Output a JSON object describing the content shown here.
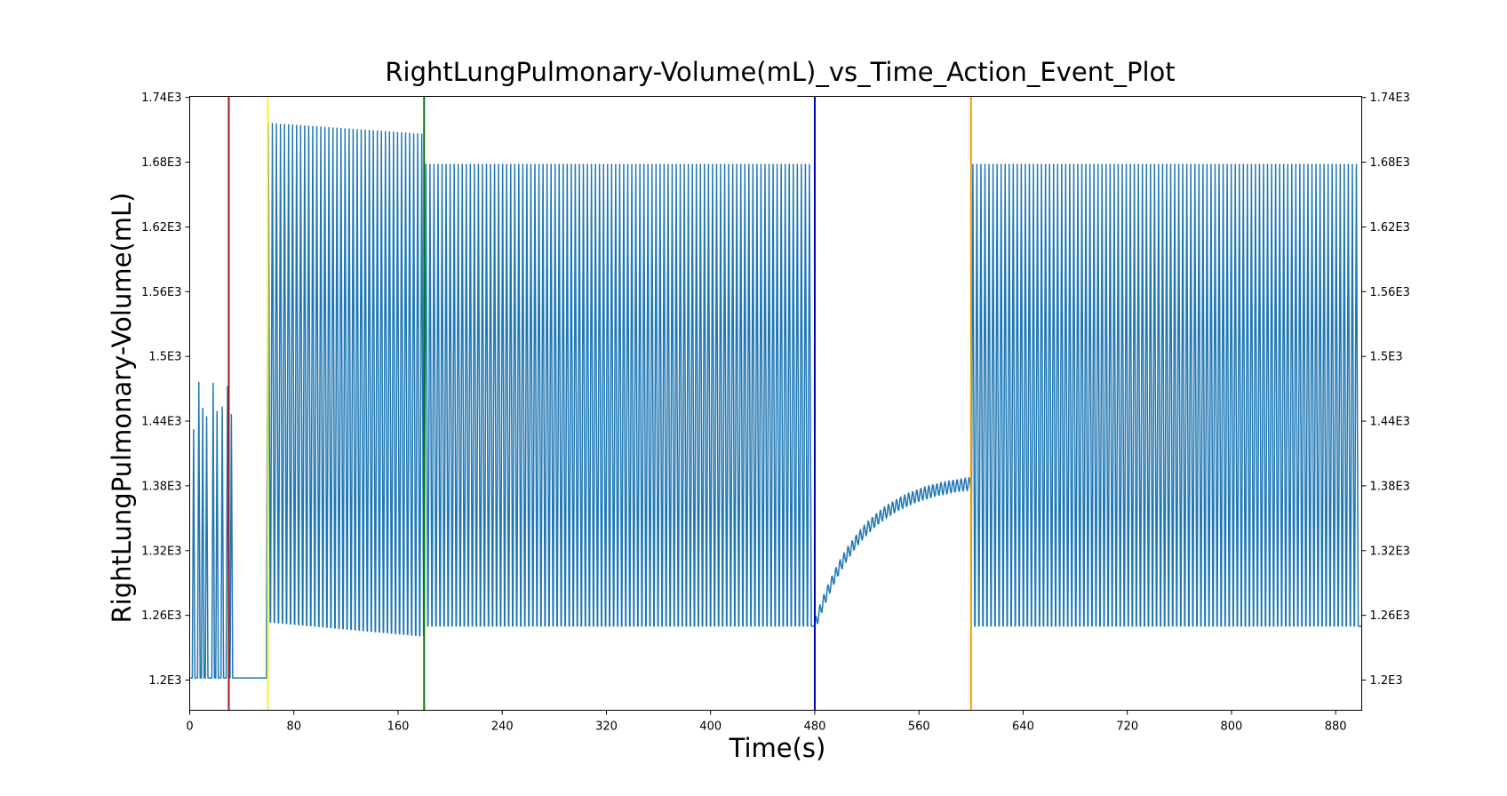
{
  "chart_data": {
    "type": "line",
    "title": "RightLungPulmonary-Volume(mL)_vs_Time_Action_Event_Plot",
    "xlabel": "Time(s)",
    "ylabel": "RightLungPulmonary-Volume(mL)",
    "xlim": [
      0,
      900
    ],
    "ylim": [
      1172,
      1741
    ],
    "x_ticks": [
      0,
      80,
      160,
      240,
      320,
      400,
      480,
      560,
      640,
      720,
      800,
      880
    ],
    "y_ticks": [
      1200,
      1260,
      1320,
      1380,
      1440,
      1500,
      1560,
      1620,
      1680,
      1740
    ],
    "y_tick_labels": [
      "1.2E3",
      "1.26E3",
      "1.32E3",
      "1.38E3",
      "1.44E3",
      "1.5E3",
      "1.56E3",
      "1.62E3",
      "1.68E3",
      "1.74E3"
    ],
    "y_ticks_mirrored_right": true,
    "grid": false,
    "series": [
      {
        "color": "#1f77b4",
        "segments": [
          {
            "x_start": 0,
            "x_end": 33,
            "shape": "irregular-breaths",
            "min": 1202,
            "peaks": [
              {
                "x": 3,
                "y": 1432
              },
              {
                "x": 7,
                "y": 1476
              },
              {
                "x": 10,
                "y": 1452
              },
              {
                "x": 13,
                "y": 1444
              },
              {
                "x": 18,
                "y": 1475
              },
              {
                "x": 21,
                "y": 1449
              },
              {
                "x": 25,
                "y": 1453
              },
              {
                "x": 29,
                "y": 1472
              },
              {
                "x": 32,
                "y": 1446
              }
            ]
          },
          {
            "x_start": 33,
            "x_end": 59,
            "shape": "flat",
            "value": 1202
          },
          {
            "x_start": 59,
            "x_end": 180,
            "shape": "oscillation",
            "period": 3.1,
            "max_start": 1716,
            "max_end": 1706,
            "min_start": 1254,
            "min_end": 1241
          },
          {
            "x_start": 180,
            "x_end": 480,
            "shape": "oscillation",
            "period": 3.1,
            "max": 1678,
            "min": 1250
          },
          {
            "x_start": 480,
            "x_end": 600,
            "shape": "recovery-curve",
            "start": 1250,
            "end": 1382,
            "ripple": 6
          },
          {
            "x_start": 600,
            "x_end": 900,
            "shape": "oscillation",
            "period": 3.1,
            "max": 1678,
            "min": 1250
          }
        ]
      }
    ],
    "event_lines": [
      {
        "x": 30,
        "color": "#a01818"
      },
      {
        "x": 60,
        "color": "#f2f233"
      },
      {
        "x": 180,
        "color": "#007a00"
      },
      {
        "x": 480,
        "color": "#0000b0"
      },
      {
        "x": 600,
        "color": "#f0a000"
      }
    ]
  }
}
